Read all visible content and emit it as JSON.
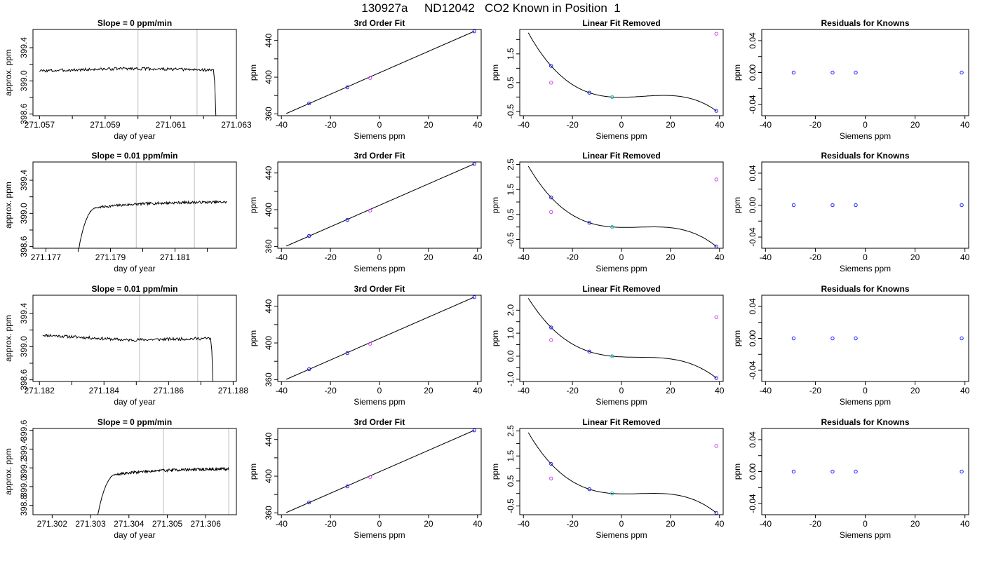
{
  "figure": {
    "title": "130927a     ND12042   CO2 Known in Position  1"
  },
  "colors": {
    "line": "#000000",
    "known": "#1a1aff",
    "unknown": "#cc44ee",
    "reference": "#22bbbb",
    "vline": "#c8c8c8"
  },
  "chart_data": [
    {
      "row": 1,
      "type": "line",
      "title": "Slope =  0  ppm/min",
      "xlabel": "day of year",
      "ylabel": "approx. ppm",
      "xlim": [
        271.0568,
        271.063
      ],
      "ylim": [
        398.58,
        399.62
      ],
      "xticks": [
        271.057,
        271.058,
        271.059,
        271.06,
        271.061,
        271.062,
        271.063
      ],
      "xtick_labels": [
        "271.057",
        "",
        "271.059",
        "",
        "271.061",
        "",
        "271.063"
      ],
      "yticks": [
        398.6,
        398.8,
        399.0,
        399.2,
        399.4
      ],
      "ytick_labels": [
        "398.6",
        "",
        "399.0",
        "",
        "399.4"
      ],
      "vlines": [
        271.06,
        271.0618
      ],
      "trace": {
        "x_start": 271.057,
        "x_plateau_end": 271.0623,
        "x_end": 271.0624,
        "level_start": 399.12,
        "level_mid": 399.15,
        "level_end": 399.13,
        "drop_to": 398.3,
        "shape": "plateau-then-drop",
        "seed": 3
      }
    },
    {
      "row": 1,
      "type": "scatter",
      "title": "3rd Order Fit",
      "xlabel": "Siemens ppm",
      "ylabel": "ppm",
      "xlim": [
        -41.5,
        41.5
      ],
      "ylim": [
        358,
        452
      ],
      "xticks": [
        -40,
        -20,
        0,
        20,
        40
      ],
      "xtick_labels": [
        "-40",
        "-20",
        "0",
        "20",
        "40"
      ],
      "yticks": [
        360,
        380,
        400,
        420,
        440
      ],
      "ytick_labels": [
        "360",
        "",
        "400",
        "",
        "440"
      ],
      "points": [
        {
          "x": -28.7,
          "y": 371.4,
          "group": "known"
        },
        {
          "x": -13.1,
          "y": 388.9,
          "group": "known"
        },
        {
          "x": -3.8,
          "y": 399.1,
          "group": "unknown"
        },
        {
          "x": 38.7,
          "y": 450.0,
          "group": "known"
        }
      ],
      "fit_line": {
        "x": [
          -38,
          38.7
        ],
        "y": [
          360.4,
          450.0
        ]
      }
    },
    {
      "row": 1,
      "type": "scatter",
      "title": "Linear Fit Removed",
      "xlabel": "Siemens ppm",
      "ylabel": "ppm",
      "xlim": [
        -41.5,
        41.5
      ],
      "ylim": [
        -0.65,
        2.35
      ],
      "xticks": [
        -40,
        -20,
        0,
        20,
        40
      ],
      "xtick_labels": [
        "-40",
        "-20",
        "0",
        "20",
        "40"
      ],
      "yticks": [
        -0.5,
        0.0,
        0.5,
        1.0,
        1.5,
        2.0
      ],
      "ytick_labels": [
        "-0.5",
        "",
        "0.5",
        "",
        "1.5",
        ""
      ],
      "points": [
        {
          "x": -28.7,
          "y": 1.08,
          "group": "known"
        },
        {
          "x": -28.7,
          "y": 0.5,
          "group": "unknown"
        },
        {
          "x": -13.1,
          "y": 0.15,
          "group": "known"
        },
        {
          "x": -3.8,
          "y": 0.0,
          "group": "reference"
        },
        {
          "x": 38.7,
          "y": -0.48,
          "group": "known"
        },
        {
          "x": 38.7,
          "y": 2.2,
          "group": "unknown"
        }
      ],
      "fit_curve": {
        "x_range": [
          -38,
          38.7
        ],
        "anchors": [
          [
            -28.7,
            1.08
          ],
          [
            -13.1,
            0.15
          ],
          [
            -3.8,
            0.0
          ],
          [
            38.7,
            -0.48
          ]
        ]
      }
    },
    {
      "row": 1,
      "type": "scatter",
      "title": "Residuals for Knowns",
      "xlabel": "Siemens ppm",
      "ylabel": "ppm",
      "xlim": [
        -41.5,
        41.5
      ],
      "ylim": [
        -0.054,
        0.054
      ],
      "xticks": [
        -40,
        -20,
        0,
        20,
        40
      ],
      "xtick_labels": [
        "-40",
        "-20",
        "0",
        "20",
        "40"
      ],
      "yticks": [
        -0.04,
        -0.02,
        0.0,
        0.02,
        0.04
      ],
      "ytick_labels": [
        "-0.04",
        "",
        "0.00",
        "",
        "0.04"
      ],
      "points": [
        {
          "x": -28.7,
          "y": 0.0,
          "group": "known"
        },
        {
          "x": -13.1,
          "y": 0.0,
          "group": "known"
        },
        {
          "x": -3.8,
          "y": 0.0,
          "group": "known"
        },
        {
          "x": 38.7,
          "y": 0.0,
          "group": "known"
        }
      ]
    },
    {
      "row": 2,
      "type": "line",
      "title": "Slope =  0.01  ppm/min",
      "xlabel": "day of year",
      "ylabel": "approx. ppm",
      "xlim": [
        271.1766,
        271.1829
      ],
      "ylim": [
        398.58,
        399.62
      ],
      "xticks": [
        271.177,
        271.178,
        271.179,
        271.18,
        271.181,
        271.182
      ],
      "xtick_labels": [
        "271.177",
        "",
        "271.179",
        "",
        "271.181",
        ""
      ],
      "yticks": [
        398.6,
        398.8,
        399.0,
        399.2,
        399.4
      ],
      "ytick_labels": [
        "398.6",
        "",
        "399.0",
        "",
        "399.4"
      ],
      "vlines": [
        271.1798,
        271.1816
      ],
      "trace": {
        "x_start": 271.1779,
        "x_end": 271.1826,
        "level_start": 398.3,
        "level_mid": 399.1,
        "level_end": 399.14,
        "shape": "rise-then-plateau",
        "rise_end": 271.1786,
        "seed": 7
      }
    },
    {
      "row": 2,
      "type": "scatter",
      "title": "3rd Order Fit",
      "xlabel": "Siemens ppm",
      "ylabel": "ppm",
      "xlim": [
        -41.5,
        41.5
      ],
      "ylim": [
        358,
        452
      ],
      "xticks": [
        -40,
        -20,
        0,
        20,
        40
      ],
      "xtick_labels": [
        "-40",
        "-20",
        "0",
        "20",
        "40"
      ],
      "yticks": [
        360,
        380,
        400,
        420,
        440
      ],
      "ytick_labels": [
        "360",
        "",
        "400",
        "",
        "440"
      ],
      "points": [
        {
          "x": -28.7,
          "y": 371.4,
          "group": "known"
        },
        {
          "x": -13.1,
          "y": 388.9,
          "group": "known"
        },
        {
          "x": -3.8,
          "y": 399.1,
          "group": "unknown"
        },
        {
          "x": 38.7,
          "y": 450.0,
          "group": "known"
        }
      ],
      "fit_line": {
        "x": [
          -38,
          38.7
        ],
        "y": [
          360.4,
          450.0
        ]
      }
    },
    {
      "row": 2,
      "type": "scatter",
      "title": "Linear Fit Removed",
      "xlabel": "Siemens ppm",
      "ylabel": "ppm",
      "xlim": [
        -41.5,
        41.5
      ],
      "ylim": [
        -0.85,
        2.6
      ],
      "xticks": [
        -40,
        -20,
        0,
        20,
        40
      ],
      "xtick_labels": [
        "-40",
        "-20",
        "0",
        "20",
        "40"
      ],
      "yticks": [
        -0.5,
        0.0,
        0.5,
        1.0,
        1.5,
        2.0,
        2.5
      ],
      "ytick_labels": [
        "-0.5",
        "",
        "0.5",
        "",
        "1.5",
        "",
        "2.5"
      ],
      "points": [
        {
          "x": -28.7,
          "y": 1.18,
          "group": "known"
        },
        {
          "x": -28.7,
          "y": 0.6,
          "group": "unknown"
        },
        {
          "x": -13.1,
          "y": 0.17,
          "group": "known"
        },
        {
          "x": -3.8,
          "y": 0.0,
          "group": "reference"
        },
        {
          "x": 38.7,
          "y": -0.78,
          "group": "known"
        },
        {
          "x": 38.7,
          "y": 1.9,
          "group": "unknown"
        }
      ],
      "fit_curve": {
        "x_range": [
          -38,
          38.7
        ],
        "anchors": [
          [
            -28.7,
            1.18
          ],
          [
            -13.1,
            0.17
          ],
          [
            -3.8,
            0.0
          ],
          [
            38.7,
            -0.78
          ]
        ]
      }
    },
    {
      "row": 2,
      "type": "scatter",
      "title": "Residuals for Knowns",
      "xlabel": "Siemens ppm",
      "ylabel": "ppm",
      "xlim": [
        -41.5,
        41.5
      ],
      "ylim": [
        -0.054,
        0.054
      ],
      "xticks": [
        -40,
        -20,
        0,
        20,
        40
      ],
      "xtick_labels": [
        "-40",
        "-20",
        "0",
        "20",
        "40"
      ],
      "yticks": [
        -0.04,
        -0.02,
        0.0,
        0.02,
        0.04
      ],
      "ytick_labels": [
        "-0.04",
        "",
        "0.00",
        "",
        "0.04"
      ],
      "points": [
        {
          "x": -28.7,
          "y": 0.0,
          "group": "known"
        },
        {
          "x": -13.1,
          "y": 0.0,
          "group": "known"
        },
        {
          "x": -3.8,
          "y": 0.0,
          "group": "known"
        },
        {
          "x": 38.7,
          "y": 0.0,
          "group": "known"
        }
      ]
    },
    {
      "row": 3,
      "type": "line",
      "title": "Slope =  0.01  ppm/min",
      "xlabel": "day of year",
      "ylabel": "approx. ppm",
      "xlim": [
        271.1818,
        271.1881
      ],
      "ylim": [
        398.58,
        399.62
      ],
      "xticks": [
        271.182,
        271.183,
        271.184,
        271.185,
        271.186,
        271.187,
        271.188
      ],
      "xtick_labels": [
        "271.182",
        "",
        "271.184",
        "",
        "271.186",
        "",
        "271.188"
      ],
      "yticks": [
        398.6,
        398.8,
        399.0,
        399.2,
        399.4
      ],
      "ytick_labels": [
        "398.6",
        "",
        "399.0",
        "",
        "399.4"
      ],
      "vlines": [
        271.1851,
        271.1869
      ],
      "trace": {
        "x_start": 271.1821,
        "x_plateau_end": 271.1873,
        "x_end": 271.1874,
        "level_start": 399.14,
        "level_mid": 399.08,
        "level_end": 399.1,
        "drop_to": 398.3,
        "shape": "plateau-then-drop",
        "seed": 11
      }
    },
    {
      "row": 3,
      "type": "scatter",
      "title": "3rd Order Fit",
      "xlabel": "Siemens ppm",
      "ylabel": "ppm",
      "xlim": [
        -41.5,
        41.5
      ],
      "ylim": [
        358,
        452
      ],
      "xticks": [
        -40,
        -20,
        0,
        20,
        40
      ],
      "xtick_labels": [
        "-40",
        "-20",
        "0",
        "20",
        "40"
      ],
      "yticks": [
        360,
        380,
        400,
        420,
        440
      ],
      "ytick_labels": [
        "360",
        "",
        "400",
        "",
        "440"
      ],
      "points": [
        {
          "x": -28.7,
          "y": 371.4,
          "group": "known"
        },
        {
          "x": -13.1,
          "y": 388.9,
          "group": "known"
        },
        {
          "x": -3.8,
          "y": 399.1,
          "group": "unknown"
        },
        {
          "x": 38.7,
          "y": 450.0,
          "group": "known"
        }
      ],
      "fit_line": {
        "x": [
          -38,
          38.7
        ],
        "y": [
          360.4,
          450.0
        ]
      }
    },
    {
      "row": 3,
      "type": "scatter",
      "title": "Linear Fit Removed",
      "xlabel": "Siemens ppm",
      "ylabel": "ppm",
      "xlim": [
        -41.5,
        41.5
      ],
      "ylim": [
        -1.1,
        2.65
      ],
      "xticks": [
        -40,
        -20,
        0,
        20,
        40
      ],
      "xtick_labels": [
        "-40",
        "-20",
        "0",
        "20",
        "40"
      ],
      "yticks": [
        -1.0,
        -0.5,
        0.0,
        0.5,
        1.0,
        1.5,
        2.0
      ],
      "ytick_labels": [
        "-1.0",
        "",
        "0.0",
        "",
        "1.0",
        "",
        "2.0"
      ],
      "points": [
        {
          "x": -28.7,
          "y": 1.25,
          "group": "known"
        },
        {
          "x": -28.7,
          "y": 0.7,
          "group": "unknown"
        },
        {
          "x": -13.1,
          "y": 0.2,
          "group": "known"
        },
        {
          "x": -3.8,
          "y": 0.0,
          "group": "reference"
        },
        {
          "x": 38.7,
          "y": -0.95,
          "group": "known"
        },
        {
          "x": 38.7,
          "y": 1.7,
          "group": "unknown"
        }
      ],
      "fit_curve": {
        "x_range": [
          -38,
          38.7
        ],
        "anchors": [
          [
            -28.7,
            1.25
          ],
          [
            -13.1,
            0.2
          ],
          [
            -3.8,
            0.0
          ],
          [
            38.7,
            -0.95
          ]
        ]
      }
    },
    {
      "row": 3,
      "type": "scatter",
      "title": "Residuals for Knowns",
      "xlabel": "Siemens ppm",
      "ylabel": "ppm",
      "xlim": [
        -41.5,
        41.5
      ],
      "ylim": [
        -0.054,
        0.054
      ],
      "xticks": [
        -40,
        -20,
        0,
        20,
        40
      ],
      "xtick_labels": [
        "-40",
        "-20",
        "0",
        "20",
        "40"
      ],
      "yticks": [
        -0.04,
        -0.02,
        0.0,
        0.02,
        0.04
      ],
      "ytick_labels": [
        "-0.04",
        "",
        "0.00",
        "",
        "0.04"
      ],
      "points": [
        {
          "x": -28.7,
          "y": 0.0,
          "group": "known"
        },
        {
          "x": -13.1,
          "y": 0.0,
          "group": "known"
        },
        {
          "x": -3.8,
          "y": 0.0,
          "group": "known"
        },
        {
          "x": 38.7,
          "y": 0.0,
          "group": "known"
        }
      ]
    },
    {
      "row": 4,
      "type": "line",
      "title": "Slope =  0  ppm/min",
      "xlabel": "day of year",
      "ylabel": "approx. ppm",
      "xlim": [
        271.3015,
        271.3068
      ],
      "ylim": [
        398.7,
        399.62
      ],
      "xticks": [
        271.302,
        271.303,
        271.304,
        271.305,
        271.306
      ],
      "xtick_labels": [
        "271.302",
        "271.303",
        "271.304",
        "271.305",
        "271.306"
      ],
      "yticks": [
        398.8,
        399.0,
        399.2,
        399.4,
        399.6
      ],
      "ytick_labels": [
        "398.8",
        "399.0",
        "399.2",
        "399.4",
        "399.6"
      ],
      "vlines": [
        271.3049,
        271.3066
      ],
      "trace": {
        "x_start": 271.3031,
        "x_end": 271.3066,
        "level_start": 398.5,
        "level_mid": 399.16,
        "level_end": 399.19,
        "shape": "rise-then-plateau",
        "rise_end": 271.3037,
        "seed": 19
      }
    },
    {
      "row": 4,
      "type": "scatter",
      "title": "3rd Order Fit",
      "xlabel": "Siemens ppm",
      "ylabel": "ppm",
      "xlim": [
        -41.5,
        41.5
      ],
      "ylim": [
        358,
        452
      ],
      "xticks": [
        -40,
        -20,
        0,
        20,
        40
      ],
      "xtick_labels": [
        "-40",
        "-20",
        "0",
        "20",
        "40"
      ],
      "yticks": [
        360,
        380,
        400,
        420,
        440
      ],
      "ytick_labels": [
        "360",
        "",
        "400",
        "",
        "440"
      ],
      "points": [
        {
          "x": -28.7,
          "y": 371.4,
          "group": "known"
        },
        {
          "x": -13.1,
          "y": 388.9,
          "group": "known"
        },
        {
          "x": -3.8,
          "y": 399.1,
          "group": "unknown"
        },
        {
          "x": 38.7,
          "y": 450.0,
          "group": "known"
        }
      ],
      "fit_line": {
        "x": [
          -38,
          38.7
        ],
        "y": [
          360.4,
          450.0
        ]
      }
    },
    {
      "row": 4,
      "type": "scatter",
      "title": "Linear Fit Removed",
      "xlabel": "Siemens ppm",
      "ylabel": "ppm",
      "xlim": [
        -41.5,
        41.5
      ],
      "ylim": [
        -0.85,
        2.6
      ],
      "xticks": [
        -40,
        -20,
        0,
        20,
        40
      ],
      "xtick_labels": [
        "-40",
        "-20",
        "0",
        "20",
        "40"
      ],
      "yticks": [
        -0.5,
        0.0,
        0.5,
        1.0,
        1.5,
        2.0,
        2.5
      ],
      "ytick_labels": [
        "-0.5",
        "",
        "0.5",
        "",
        "1.5",
        "",
        "2.5"
      ],
      "points": [
        {
          "x": -28.7,
          "y": 1.18,
          "group": "known"
        },
        {
          "x": -28.7,
          "y": 0.6,
          "group": "unknown"
        },
        {
          "x": -13.1,
          "y": 0.17,
          "group": "known"
        },
        {
          "x": -3.8,
          "y": 0.0,
          "group": "reference"
        },
        {
          "x": 38.7,
          "y": -0.78,
          "group": "known"
        },
        {
          "x": 38.7,
          "y": 1.9,
          "group": "unknown"
        }
      ],
      "fit_curve": {
        "x_range": [
          -38,
          38.7
        ],
        "anchors": [
          [
            -28.7,
            1.18
          ],
          [
            -13.1,
            0.17
          ],
          [
            -3.8,
            0.0
          ],
          [
            38.7,
            -0.78
          ]
        ]
      }
    },
    {
      "row": 4,
      "type": "scatter",
      "title": "Residuals for Knowns",
      "xlabel": "Siemens ppm",
      "ylabel": "ppm",
      "xlim": [
        -41.5,
        41.5
      ],
      "ylim": [
        -0.054,
        0.054
      ],
      "xticks": [
        -40,
        -20,
        0,
        20,
        40
      ],
      "xtick_labels": [
        "-40",
        "-20",
        "0",
        "20",
        "40"
      ],
      "yticks": [
        -0.04,
        -0.02,
        0.0,
        0.02,
        0.04
      ],
      "ytick_labels": [
        "-0.04",
        "",
        "0.00",
        "",
        "0.04"
      ],
      "points": [
        {
          "x": -28.7,
          "y": 0.0,
          "group": "known"
        },
        {
          "x": -13.1,
          "y": 0.0,
          "group": "known"
        },
        {
          "x": -3.8,
          "y": 0.0,
          "group": "known"
        },
        {
          "x": 38.7,
          "y": 0.0,
          "group": "known"
        }
      ]
    }
  ]
}
